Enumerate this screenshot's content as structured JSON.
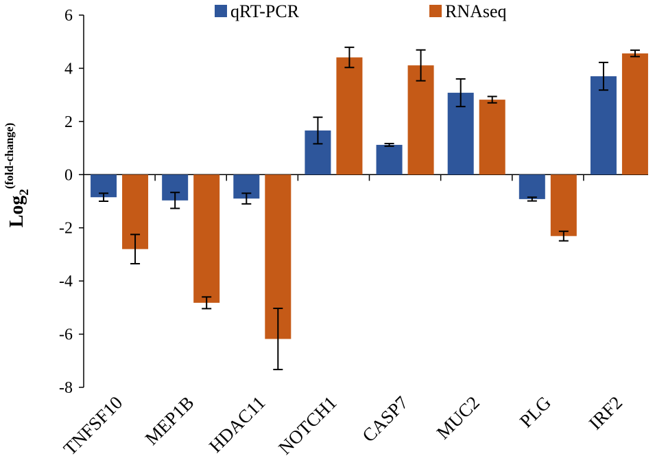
{
  "chart_data": {
    "type": "bar",
    "title": "",
    "xlabel": "",
    "ylabel": "Log",
    "ylabel_sub": "2",
    "ylabel_sup": "(fold-change)",
    "ylim": [
      -8,
      6
    ],
    "yticks": [
      6,
      4,
      2,
      0,
      -2,
      -4,
      -6,
      -8
    ],
    "yticks_labels": [
      "6",
      "4",
      "2",
      "0",
      "-2",
      "-4",
      "-6",
      "-8"
    ],
    "grid": false,
    "legend_position": "top",
    "categories": [
      "TNFSF10",
      "MEP1B",
      "HDAC11",
      "NOTCH1",
      "CASP7",
      "MUC2",
      "PLG",
      "IRF2"
    ],
    "series": [
      {
        "name": "qRT-PCR",
        "color": "#2e569b",
        "values": [
          -0.85,
          -0.97,
          -0.9,
          1.66,
          1.12,
          3.08,
          -0.92,
          3.7
        ],
        "errors": [
          0.15,
          0.3,
          0.2,
          0.5,
          0.05,
          0.52,
          0.07,
          0.52
        ]
      },
      {
        "name": "RNAseq",
        "color": "#c55a17",
        "values": [
          -2.8,
          -4.82,
          -6.18,
          4.41,
          4.11,
          2.82,
          -2.31,
          4.56
        ],
        "errors": [
          0.55,
          0.22,
          1.15,
          0.38,
          0.58,
          0.12,
          0.18,
          0.12
        ]
      }
    ]
  }
}
